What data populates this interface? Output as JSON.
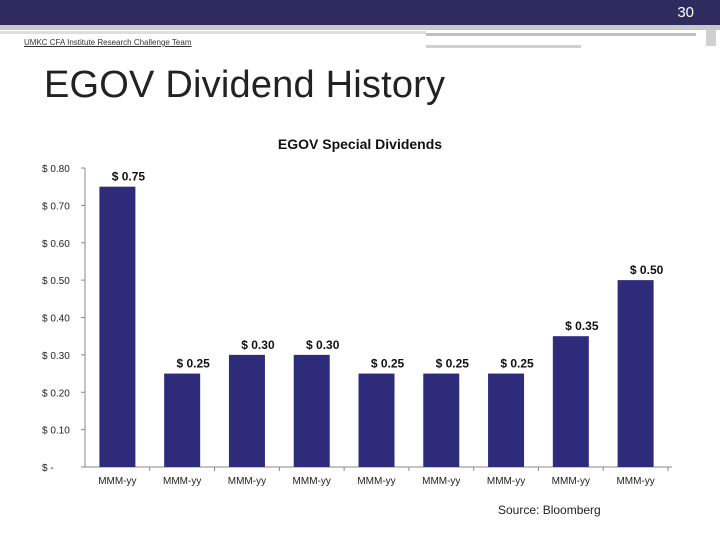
{
  "slide": {
    "number": "30",
    "org_label": "UMKC CFA Institute Research Challenge Team",
    "title": "EGOV Dividend History",
    "source": "Source: Bloomberg"
  },
  "colors": {
    "bar": "#2e2b7a",
    "topbar": "#2e2b5e",
    "axis": "#888888"
  },
  "chart_data": {
    "type": "bar",
    "title": "EGOV Special Dividends",
    "xlabel": "",
    "ylabel": "",
    "ylim": [
      0,
      0.8
    ],
    "yticks": [
      0,
      0.1,
      0.2,
      0.3,
      0.4,
      0.5,
      0.6,
      0.7,
      0.8
    ],
    "ytick_labels": [
      "$ -",
      "$ 0.10",
      "$ 0.20",
      "$ 0.30",
      "$ 0.40",
      "$ 0.50",
      "$ 0.60",
      "$ 0.70",
      "$ 0.80"
    ],
    "categories": [
      "MMM-yy",
      "MMM-yy",
      "MMM-yy",
      "MMM-yy",
      "MMM-yy",
      "MMM-yy",
      "MMM-yy",
      "MMM-yy",
      "MMM-yy"
    ],
    "values": [
      0.75,
      0.25,
      0.3,
      0.3,
      0.25,
      0.25,
      0.25,
      0.35,
      0.5
    ],
    "data_labels": [
      "$ 0.75",
      "$ 0.25",
      "$ 0.30",
      "$ 0.30",
      "$ 0.25",
      "$ 0.25",
      "$ 0.25",
      "$ 0.35",
      "$ 0.50"
    ],
    "grid": false,
    "legend": "none"
  }
}
